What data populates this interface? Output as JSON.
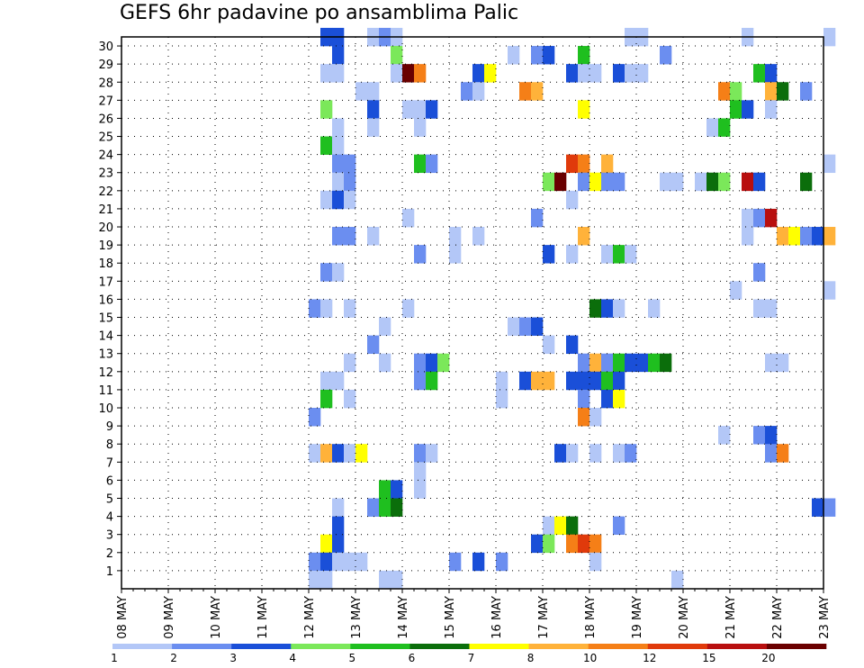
{
  "chart_data": {
    "type": "heatmap",
    "title": "GEFS 6hr padavine po ansamblima Palic",
    "xlabel": "",
    "ylabel": "",
    "x_ticks": [
      "08 MAY",
      "09 MAY",
      "10 MAY",
      "11 MAY",
      "12 MAY",
      "13 MAY",
      "14 MAY",
      "15 MAY",
      "16 MAY",
      "17 MAY",
      "18 MAY",
      "19 MAY",
      "20 MAY",
      "21 MAY",
      "22 MAY",
      "23 MAY"
    ],
    "y_ticks": [
      1,
      2,
      3,
      4,
      5,
      6,
      7,
      8,
      9,
      10,
      11,
      12,
      13,
      14,
      15,
      16,
      17,
      18,
      19,
      20,
      21,
      22,
      23,
      24,
      25,
      26,
      27,
      28,
      29,
      30
    ],
    "x_step_hours": 6,
    "grid": true,
    "colorbar": {
      "labels": [
        "1",
        "2",
        "3",
        "4",
        "5",
        "6",
        "7",
        "8",
        "10",
        "12",
        "15",
        "20"
      ],
      "colors": [
        "#b3c7f7",
        "#6b8ef0",
        "#1a4fd8",
        "#7be85a",
        "#1fbf1f",
        "#0b6e0b",
        "#ffff00",
        "#ffb23a",
        "#f57f17",
        "#e03a0b",
        "#b80f0f",
        "#6a0000"
      ]
    },
    "cells": [
      [
        17,
        30,
        2
      ],
      [
        18,
        30,
        2
      ],
      [
        21,
        30,
        0
      ],
      [
        22,
        30,
        1
      ],
      [
        23,
        30,
        0
      ],
      [
        43,
        30,
        0
      ],
      [
        44,
        30,
        0
      ],
      [
        53,
        30,
        0
      ],
      [
        60,
        30,
        0
      ],
      [
        18,
        29,
        2
      ],
      [
        23,
        29,
        3
      ],
      [
        33,
        29,
        0
      ],
      [
        35,
        29,
        1
      ],
      [
        36,
        29,
        2
      ],
      [
        39,
        29,
        4
      ],
      [
        46,
        29,
        1
      ],
      [
        17,
        28,
        0
      ],
      [
        18,
        28,
        0
      ],
      [
        23,
        28,
        0
      ],
      [
        24,
        28,
        11
      ],
      [
        25,
        28,
        8
      ],
      [
        30,
        28,
        2
      ],
      [
        31,
        28,
        6
      ],
      [
        38,
        28,
        2
      ],
      [
        39,
        28,
        0
      ],
      [
        40,
        28,
        0
      ],
      [
        42,
        28,
        2
      ],
      [
        43,
        28,
        0
      ],
      [
        44,
        28,
        0
      ],
      [
        54,
        28,
        4
      ],
      [
        55,
        28,
        2
      ],
      [
        20,
        27,
        0
      ],
      [
        21,
        27,
        0
      ],
      [
        29,
        27,
        1
      ],
      [
        30,
        27,
        0
      ],
      [
        34,
        27,
        8
      ],
      [
        35,
        27,
        7
      ],
      [
        51,
        27,
        8
      ],
      [
        52,
        27,
        3
      ],
      [
        55,
        27,
        7
      ],
      [
        56,
        27,
        5
      ],
      [
        58,
        27,
        1
      ],
      [
        17,
        26,
        3
      ],
      [
        21,
        26,
        2
      ],
      [
        24,
        26,
        0
      ],
      [
        25,
        26,
        0
      ],
      [
        26,
        26,
        2
      ],
      [
        39,
        26,
        6
      ],
      [
        52,
        26,
        4
      ],
      [
        53,
        26,
        2
      ],
      [
        55,
        26,
        0
      ],
      [
        18,
        25,
        0
      ],
      [
        21,
        25,
        0
      ],
      [
        25,
        25,
        0
      ],
      [
        50,
        25,
        0
      ],
      [
        51,
        25,
        4
      ],
      [
        17,
        24,
        4
      ],
      [
        18,
        24,
        0
      ],
      [
        18,
        23,
        1
      ],
      [
        19,
        23,
        1
      ],
      [
        25,
        23,
        4
      ],
      [
        26,
        23,
        1
      ],
      [
        38,
        23,
        9
      ],
      [
        39,
        23,
        8
      ],
      [
        41,
        23,
        7
      ],
      [
        60,
        23,
        0
      ],
      [
        18,
        22,
        0
      ],
      [
        19,
        22,
        1
      ],
      [
        36,
        22,
        3
      ],
      [
        37,
        22,
        11
      ],
      [
        39,
        22,
        1
      ],
      [
        40,
        22,
        6
      ],
      [
        41,
        22,
        1
      ],
      [
        42,
        22,
        1
      ],
      [
        46,
        22,
        0
      ],
      [
        47,
        22,
        0
      ],
      [
        49,
        22,
        0
      ],
      [
        50,
        22,
        5
      ],
      [
        51,
        22,
        3
      ],
      [
        53,
        22,
        10
      ],
      [
        54,
        22,
        2
      ],
      [
        58,
        22,
        5
      ],
      [
        17,
        21,
        0
      ],
      [
        18,
        21,
        2
      ],
      [
        19,
        21,
        0
      ],
      [
        38,
        21,
        0
      ],
      [
        24,
        20,
        0
      ],
      [
        35,
        20,
        1
      ],
      [
        53,
        20,
        0
      ],
      [
        54,
        20,
        1
      ],
      [
        55,
        20,
        10
      ],
      [
        18,
        19,
        1
      ],
      [
        19,
        19,
        1
      ],
      [
        21,
        19,
        0
      ],
      [
        28,
        19,
        0
      ],
      [
        30,
        19,
        0
      ],
      [
        39,
        19,
        7
      ],
      [
        53,
        19,
        0
      ],
      [
        56,
        19,
        7
      ],
      [
        57,
        19,
        6
      ],
      [
        58,
        19,
        1
      ],
      [
        59,
        19,
        2
      ],
      [
        60,
        19,
        7
      ],
      [
        25,
        18,
        1
      ],
      [
        28,
        18,
        0
      ],
      [
        36,
        18,
        2
      ],
      [
        38,
        18,
        0
      ],
      [
        41,
        18,
        0
      ],
      [
        42,
        18,
        4
      ],
      [
        43,
        18,
        0
      ],
      [
        17,
        17,
        1
      ],
      [
        18,
        17,
        0
      ],
      [
        54,
        17,
        1
      ],
      [
        52,
        16,
        0
      ],
      [
        60,
        16,
        0
      ],
      [
        16,
        15,
        1
      ],
      [
        17,
        15,
        0
      ],
      [
        19,
        15,
        0
      ],
      [
        24,
        15,
        0
      ],
      [
        40,
        15,
        5
      ],
      [
        41,
        15,
        2
      ],
      [
        42,
        15,
        0
      ],
      [
        45,
        15,
        0
      ],
      [
        54,
        15,
        0
      ],
      [
        55,
        15,
        0
      ],
      [
        22,
        14,
        0
      ],
      [
        33,
        14,
        0
      ],
      [
        34,
        14,
        1
      ],
      [
        35,
        14,
        2
      ],
      [
        21,
        13,
        1
      ],
      [
        36,
        13,
        0
      ],
      [
        38,
        13,
        2
      ],
      [
        19,
        12,
        0
      ],
      [
        22,
        12,
        0
      ],
      [
        25,
        12,
        1
      ],
      [
        26,
        12,
        2
      ],
      [
        27,
        12,
        3
      ],
      [
        39,
        12,
        1
      ],
      [
        40,
        12,
        7
      ],
      [
        41,
        12,
        1
      ],
      [
        42,
        12,
        4
      ],
      [
        43,
        12,
        2
      ],
      [
        44,
        12,
        2
      ],
      [
        45,
        12,
        4
      ],
      [
        46,
        12,
        5
      ],
      [
        55,
        12,
        0
      ],
      [
        56,
        12,
        0
      ],
      [
        17,
        11,
        0
      ],
      [
        18,
        11,
        0
      ],
      [
        25,
        11,
        1
      ],
      [
        26,
        11,
        4
      ],
      [
        32,
        11,
        0
      ],
      [
        34,
        11,
        2
      ],
      [
        35,
        11,
        7
      ],
      [
        36,
        11,
        7
      ],
      [
        38,
        11,
        2
      ],
      [
        39,
        11,
        2
      ],
      [
        40,
        11,
        2
      ],
      [
        41,
        11,
        4
      ],
      [
        42,
        11,
        2
      ],
      [
        17,
        10,
        4
      ],
      [
        19,
        10,
        0
      ],
      [
        32,
        10,
        0
      ],
      [
        39,
        10,
        1
      ],
      [
        41,
        10,
        2
      ],
      [
        42,
        10,
        6
      ],
      [
        16,
        9,
        1
      ],
      [
        39,
        9,
        8
      ],
      [
        40,
        9,
        0
      ],
      [
        51,
        8,
        0
      ],
      [
        54,
        8,
        1
      ],
      [
        55,
        8,
        2
      ],
      [
        16,
        7,
        0
      ],
      [
        17,
        7,
        7
      ],
      [
        18,
        7,
        2
      ],
      [
        19,
        7,
        0
      ],
      [
        20,
        7,
        6
      ],
      [
        25,
        7,
        1
      ],
      [
        26,
        7,
        0
      ],
      [
        37,
        7,
        2
      ],
      [
        38,
        7,
        0
      ],
      [
        40,
        7,
        0
      ],
      [
        42,
        7,
        0
      ],
      [
        43,
        7,
        1
      ],
      [
        55,
        7,
        1
      ],
      [
        56,
        7,
        8
      ],
      [
        25,
        6,
        0
      ],
      [
        22,
        5,
        4
      ],
      [
        23,
        5,
        2
      ],
      [
        25,
        5,
        0
      ],
      [
        18,
        4,
        0
      ],
      [
        21,
        4,
        1
      ],
      [
        22,
        4,
        4
      ],
      [
        23,
        4,
        5
      ],
      [
        59,
        4,
        2
      ],
      [
        60,
        4,
        1
      ],
      [
        18,
        3,
        2
      ],
      [
        36,
        3,
        0
      ],
      [
        37,
        3,
        6
      ],
      [
        38,
        3,
        5
      ],
      [
        42,
        3,
        1
      ],
      [
        17,
        2,
        6
      ],
      [
        18,
        2,
        2
      ],
      [
        35,
        2,
        2
      ],
      [
        36,
        2,
        3
      ],
      [
        38,
        2,
        8
      ],
      [
        39,
        2,
        9
      ],
      [
        40,
        2,
        8
      ],
      [
        16,
        1,
        1
      ],
      [
        17,
        1,
        2
      ],
      [
        18,
        1,
        0
      ],
      [
        19,
        1,
        0
      ],
      [
        20,
        1,
        0
      ],
      [
        28,
        1,
        1
      ],
      [
        30,
        1,
        2
      ],
      [
        32,
        1,
        1
      ],
      [
        40,
        1,
        0
      ],
      [
        16,
        0,
        0
      ],
      [
        17,
        0,
        0
      ],
      [
        22,
        0,
        0
      ],
      [
        23,
        0,
        0
      ],
      [
        47,
        0,
        0
      ]
    ]
  }
}
